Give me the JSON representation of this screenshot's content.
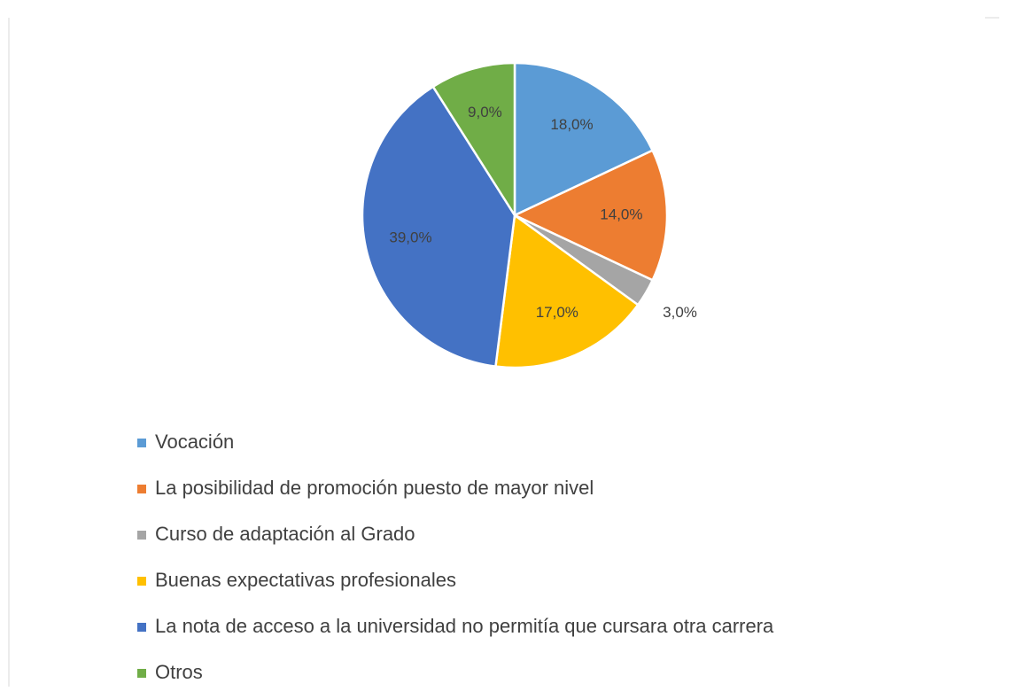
{
  "chart_data": {
    "type": "pie",
    "categories": [
      "Vocación",
      "La posibilidad de promoción puesto de mayor nivel",
      "Curso de adaptación al Grado",
      "Buenas expectativas profesionales",
      "La nota de acceso a la universidad no permitía que cursara otra carrera",
      "Otros"
    ],
    "values": [
      18,
      14,
      3,
      17,
      39,
      9
    ],
    "value_labels": [
      "18,0%",
      "14,0%",
      "3,0%",
      "17,0%",
      "39,0%",
      "9,0%"
    ],
    "colors": [
      "#5b9bd5",
      "#ed7d31",
      "#a5a5a5",
      "#ffc000",
      "#4472c4",
      "#70ad47"
    ],
    "legend": "bottom"
  }
}
